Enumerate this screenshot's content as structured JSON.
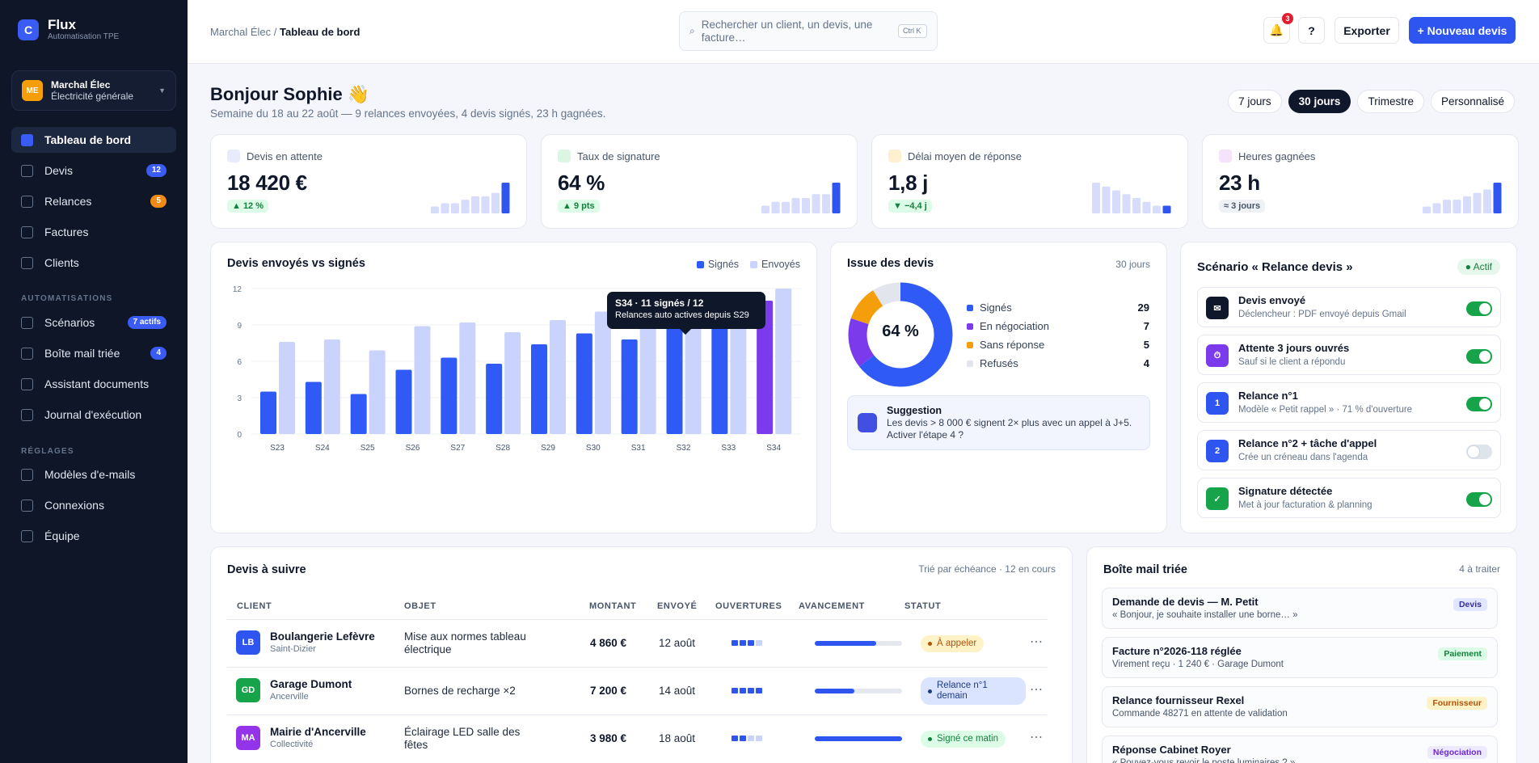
{
  "brand": {
    "logo": "C",
    "name": "Flux",
    "subtitle": "Automatisation TPE"
  },
  "company": {
    "initials": "ME",
    "name": "Marchal Élec",
    "activity": "Électricité générale"
  },
  "nav": {
    "main": [
      {
        "label": "Tableau de bord",
        "active": true
      },
      {
        "label": "Devis",
        "badge": "12",
        "badge_color": "blue"
      },
      {
        "label": "Relances",
        "badge": "5",
        "badge_color": "orange"
      },
      {
        "label": "Factures"
      },
      {
        "label": "Clients"
      }
    ],
    "automations_title": "AUTOMATISATIONS",
    "automations": [
      {
        "label": "Scénarios",
        "badge": "7 actifs",
        "badge_color": "blue"
      },
      {
        "label": "Boîte mail triée",
        "badge": "4",
        "badge_color": "blue"
      },
      {
        "label": "Assistant documents"
      },
      {
        "label": "Journal d'exécution"
      }
    ],
    "settings_title": "RÉGLAGES",
    "settings": [
      {
        "label": "Modèles d'e-mails"
      },
      {
        "label": "Connexions"
      },
      {
        "label": "Équipe"
      }
    ]
  },
  "header": {
    "breadcrumb_parent": "Marchal Élec",
    "breadcrumb_sep": " / ",
    "breadcrumb_current": "Tableau de bord",
    "search_placeholder": "Rechercher un client, un devis, une facture…",
    "search_shortcut": "Ctrl K",
    "notif_count": "3",
    "help": "?",
    "export": "Exporter",
    "new_quote": "+ Nouveau devis"
  },
  "greeting": {
    "title": "Bonjour Sophie 👋",
    "subtitle": "Semaine du 18 au 22 août — 9 relances envoyées, 4 devis signés, 23 h gagnées."
  },
  "ranges": [
    {
      "label": "7 jours"
    },
    {
      "label": "30 jours",
      "active": true
    },
    {
      "label": "Trimestre"
    },
    {
      "label": "Personnalisé"
    }
  ],
  "kpis": [
    {
      "label": "Devis en attente",
      "value": "18 420 €",
      "delta": "▲ 12 %",
      "delta_style": "green",
      "color": "#e8ebfb",
      "spark": [
        2,
        3,
        3,
        4,
        5,
        5,
        6,
        9
      ]
    },
    {
      "label": "Taux de signature",
      "value": "64 %",
      "delta": "▲ 9 pts",
      "delta_style": "green",
      "color": "#dcf6e4",
      "spark": [
        2,
        3,
        3,
        4,
        4,
        5,
        5,
        8
      ]
    },
    {
      "label": "Délai moyen de réponse",
      "value": "1,8 j",
      "delta": "▼ −4,4 j",
      "delta_style": "green",
      "color": "#fdf1cf",
      "spark": [
        8,
        7,
        6,
        5,
        4,
        3,
        2,
        2
      ]
    },
    {
      "label": "Heures gagnées",
      "value": "23 h",
      "delta": "≈ 3 jours",
      "delta_style": "gray",
      "color": "#f4e3fb",
      "spark": [
        2,
        3,
        4,
        4,
        5,
        6,
        7,
        9
      ]
    }
  ],
  "bar_card": {
    "title": "Devis envoyés vs signés",
    "legend_signed": "Signés",
    "legend_sent": "Envoyés",
    "tooltip_title": "S34 · 11 signés / 12",
    "tooltip_text": "Relances auto actives depuis S29"
  },
  "chart_data": {
    "type": "bar",
    "title": "Devis envoyés vs signés",
    "categories": [
      "S23",
      "S24",
      "S25",
      "S26",
      "S27",
      "S28",
      "S29",
      "S30",
      "S31",
      "S32",
      "S33",
      "S34"
    ],
    "series": [
      {
        "name": "Signés",
        "values": [
          3.5,
          4.3,
          3.3,
          5.3,
          6.3,
          5.8,
          7.4,
          8.3,
          7.8,
          9.3,
          9.5,
          11
        ],
        "color": "#2f5af5"
      },
      {
        "name": "Envoyés",
        "values": [
          7.6,
          7.8,
          6.9,
          8.9,
          9.2,
          8.4,
          9.4,
          10.1,
          9.8,
          10.7,
          11.2,
          12
        ],
        "color": "#c9d3fb"
      }
    ],
    "ylim": [
      0,
      12
    ],
    "yticks": [
      "0",
      "3",
      "6",
      "9",
      "12"
    ],
    "highlight": "S34",
    "highlight_color": "#7c3aed",
    "grid": true,
    "legend": "top-right"
  },
  "donut": {
    "title": "Issue des devis",
    "range": "30 jours",
    "center": "64 %",
    "slices": [
      {
        "label": "Signés",
        "value": 29,
        "color": "#2f5af5"
      },
      {
        "label": "En négociation",
        "value": 7,
        "color": "#7c3aed"
      },
      {
        "label": "Sans réponse",
        "value": 5,
        "color": "#f59e0b"
      },
      {
        "label": "Refusés",
        "value": 4,
        "color": "#e2e6ec"
      }
    ],
    "suggestion_title": "Suggestion",
    "suggestion_text": "Les devis > 8 000 € signent 2× plus avec un appel à J+5. Activer l'étape 4 ?"
  },
  "scenario": {
    "title": "Scénario « Relance devis »",
    "status": "Actif",
    "steps": [
      {
        "title": "Devis envoyé",
        "desc": "Déclencheur : PDF envoyé depuis Gmail",
        "icon": "✉",
        "color": "#0f172a",
        "on": true
      },
      {
        "title": "Attente 3 jours ouvrés",
        "desc": "Sauf si le client a répondu",
        "icon": "⏱",
        "color": "#7c3aed",
        "on": true
      },
      {
        "title": "Relance n°1",
        "desc": "Modèle « Petit rappel » · 71 % d'ouverture",
        "icon": "1",
        "color": "#2f55f0",
        "on": true
      },
      {
        "title": "Relance n°2 + tâche d'appel",
        "desc": "Crée un créneau dans l'agenda",
        "icon": "2",
        "color": "#2f55f0",
        "on": false
      },
      {
        "title": "Signature détectée",
        "desc": "Met à jour facturation & planning",
        "icon": "✓",
        "color": "#16a34a",
        "on": true
      }
    ]
  },
  "quotes": {
    "title": "Devis à suivre",
    "meta": "Trié par échéance · 12 en cours",
    "columns": [
      "CLIENT",
      "OBJET",
      "MONTANT",
      "ENVOYÉ",
      "OUVERTURES",
      "AVANCEMENT",
      "STATUT"
    ],
    "rows": [
      {
        "initials": "LB",
        "avatar_color": "#2f55f0",
        "client": "Boulangerie Lefèvre",
        "city": "Saint-Dizier",
        "object": "Mise aux normes tableau électrique",
        "amount": "4 860 €",
        "sent": "12 août",
        "opens": 3,
        "progress": 0.7,
        "status": "À appeler",
        "status_style": "amber"
      },
      {
        "initials": "GD",
        "avatar_color": "#16a34a",
        "client": "Garage Dumont",
        "city": "Ancerville",
        "object": "Bornes de recharge ×2",
        "amount": "7 200 €",
        "sent": "14 août",
        "opens": 4,
        "progress": 0.45,
        "status": "Relance n°1 demain",
        "status_style": "blue"
      },
      {
        "initials": "MA",
        "avatar_color": "#9333ea",
        "client": "Mairie d'Ancerville",
        "city": "Collectivité",
        "object": "Éclairage LED salle des fêtes",
        "amount": "3 980 €",
        "sent": "18 août",
        "opens": 2,
        "progress": 1.0,
        "status": "Signé ce matin",
        "status_style": "green"
      }
    ]
  },
  "inbox": {
    "title": "Boîte mail triée",
    "meta": "4 à traiter",
    "items": [
      {
        "subject": "Demande de devis — M. Petit",
        "preview": "« Bonjour, je souhaite installer une borne… »",
        "tag": "Devis",
        "tag_style": "blue"
      },
      {
        "subject": "Facture n°2026-118 réglée",
        "preview": "Virement reçu · 1 240 € · Garage Dumont",
        "tag": "Paiement",
        "tag_style": "green"
      },
      {
        "subject": "Relance fournisseur Rexel",
        "preview": "Commande 48271 en attente de validation",
        "tag": "Fournisseur",
        "tag_style": "amber"
      },
      {
        "subject": "Réponse Cabinet Royer",
        "preview": "« Pouvez-vous revoir le poste luminaires ? »",
        "tag": "Négociation",
        "tag_style": "purple"
      }
    ]
  }
}
